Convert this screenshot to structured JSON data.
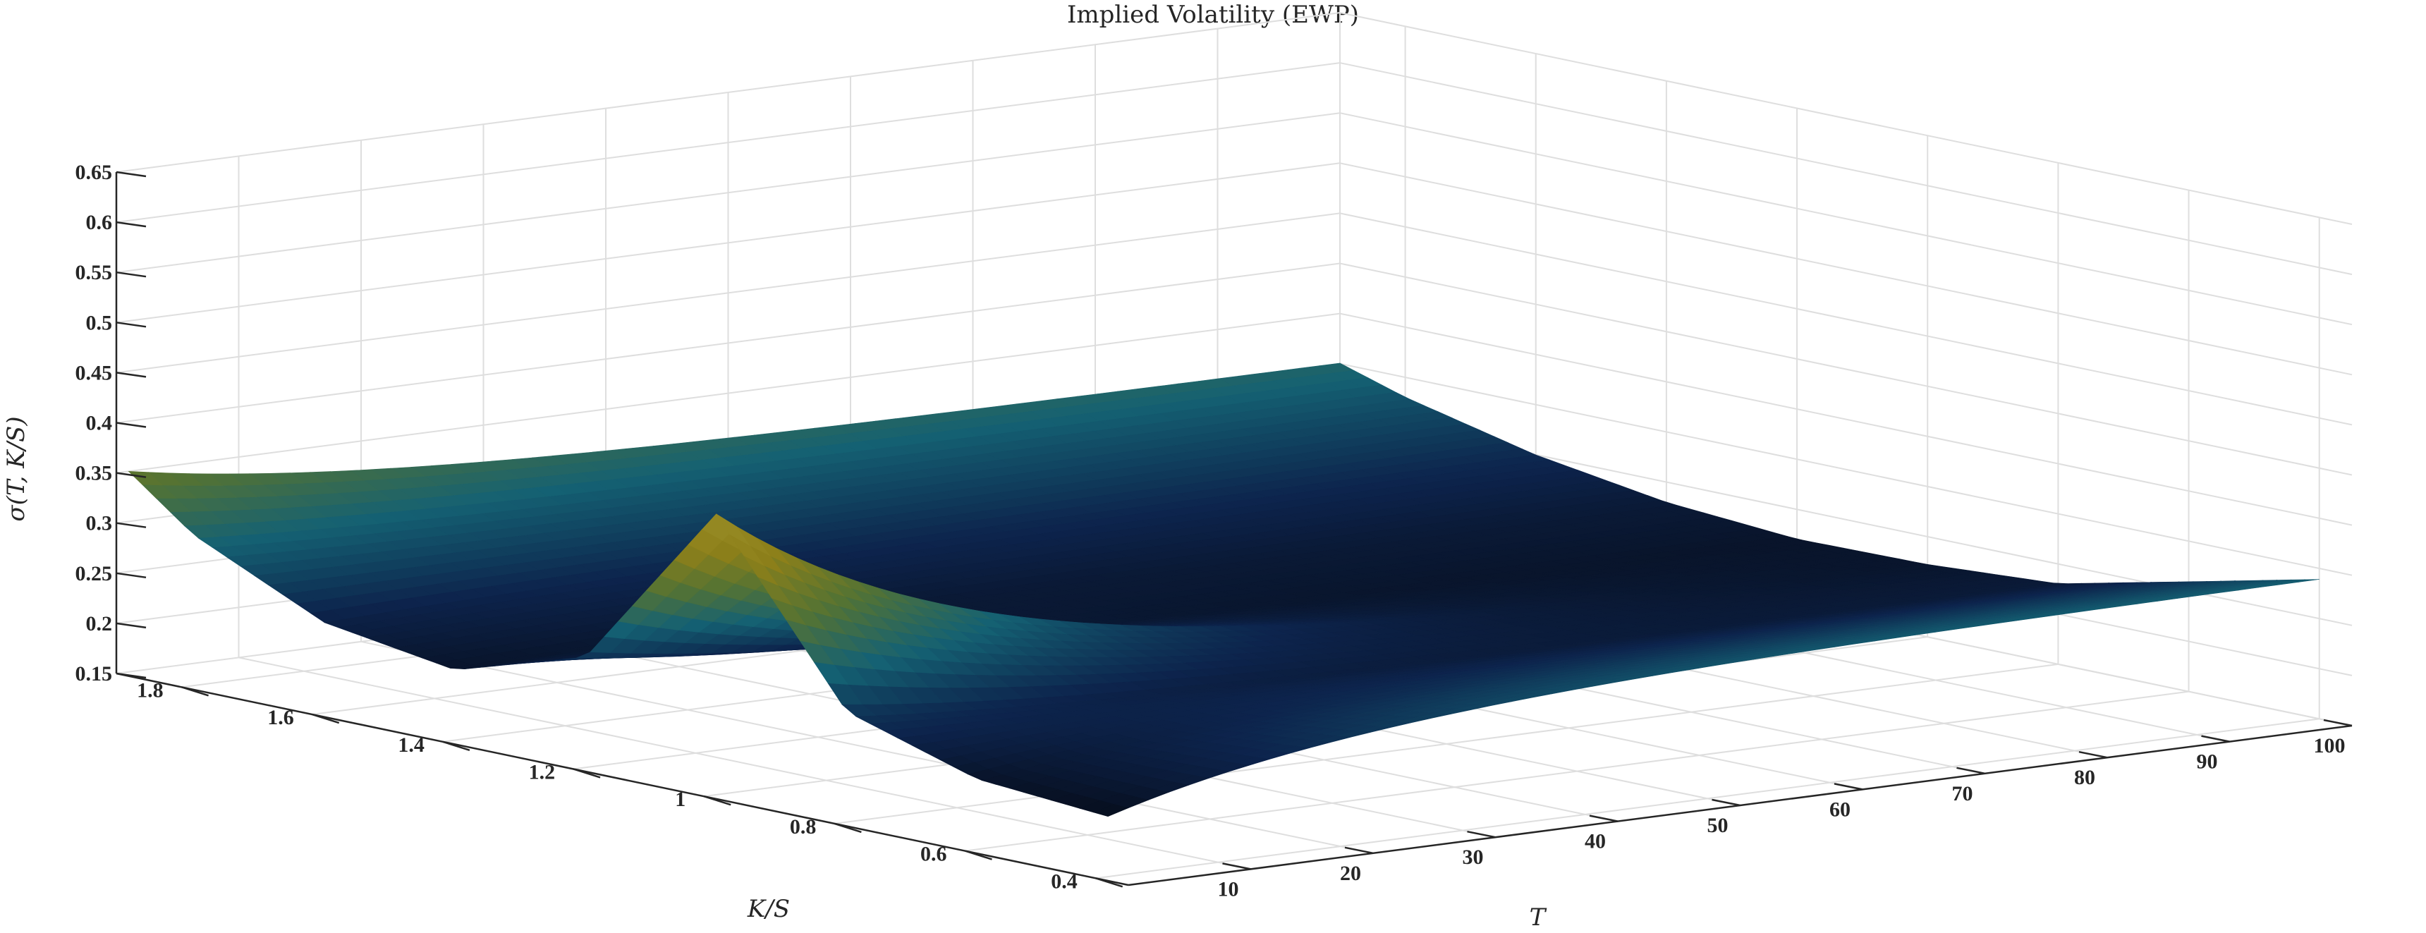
{
  "chart_data": {
    "type": "surface",
    "title": "Implied Volatility (EWP)",
    "xlabel": "K/S",
    "ylabel": "T",
    "zlabel": "σ(T, K/S)",
    "x_ticks": [
      "1.8",
      "1.6",
      "1.4",
      "1.2",
      "1",
      "0.8",
      "0.6",
      "0.4"
    ],
    "x_tick_values": [
      1.8,
      1.6,
      1.4,
      1.2,
      1.0,
      0.8,
      0.6,
      0.4
    ],
    "y_ticks": [
      "10",
      "20",
      "30",
      "40",
      "50",
      "60",
      "70",
      "80",
      "90",
      "100"
    ],
    "y_tick_values": [
      10,
      20,
      30,
      40,
      50,
      60,
      70,
      80,
      90,
      100
    ],
    "z_ticks": [
      "0.15",
      "0.2",
      "0.25",
      "0.3",
      "0.35",
      "0.4",
      "0.45",
      "0.5",
      "0.55",
      "0.6",
      "0.65"
    ],
    "z_tick_values": [
      0.15,
      0.2,
      0.25,
      0.3,
      0.35,
      0.4,
      0.45,
      0.5,
      0.55,
      0.6,
      0.65
    ],
    "xlim": [
      0.35,
      1.9
    ],
    "ylim": [
      0,
      100
    ],
    "zlim": [
      0.15,
      0.65
    ],
    "grid": true,
    "colormap": "parula-dark",
    "surface": {
      "k_values": [
        0.4,
        0.6,
        0.8,
        1.0,
        1.2,
        1.4,
        1.6,
        1.8,
        1.9
      ],
      "t_values": [
        1,
        10,
        20,
        30,
        40,
        50,
        60,
        70,
        80,
        90,
        100
      ],
      "sigma_at_T100": [
        0.29,
        0.26,
        0.23,
        0.22,
        0.22,
        0.23,
        0.25,
        0.28,
        0.3
      ],
      "sigma_at_T1": [
        0.21,
        0.22,
        0.26,
        0.43,
        0.26,
        0.22,
        0.24,
        0.3,
        0.35
      ],
      "peak": {
        "k": 1.0,
        "t": 1,
        "sigma": 0.43
      }
    }
  }
}
